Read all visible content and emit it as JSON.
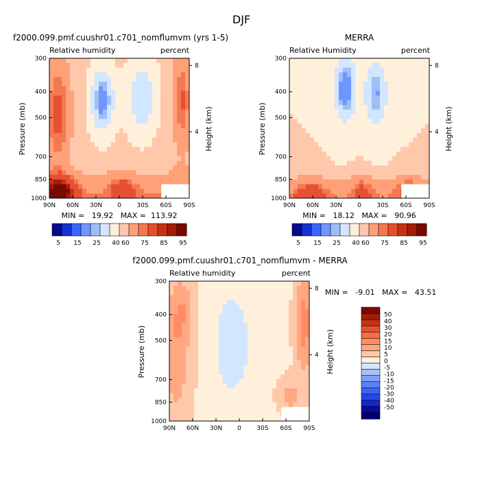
{
  "figure": {
    "title": "DJF"
  },
  "chart_data": [
    {
      "type": "heatmap",
      "id": "model",
      "title": "f2000.099.pmf.cuushr01.c701_nomflumvm (yrs 1-5)",
      "left_label": "Relative humidity",
      "right_label": "percent",
      "ylabel": "Pressure (mb)",
      "y2label": "Height (km)",
      "x_ticks": [
        "90N",
        "60N",
        "30N",
        "0",
        "30S",
        "60S",
        "90S"
      ],
      "y_ticks": [
        "300",
        "400",
        "500",
        "700",
        "850",
        "1000"
      ],
      "y2_ticks": [
        "8",
        "4"
      ],
      "stats": "MIN =   19.92   MAX =  113.92",
      "min": 19.92,
      "max": 113.92,
      "colorbar_labels": [
        "5",
        "15",
        "25",
        "40",
        "60",
        "75",
        "85",
        "95"
      ]
    },
    {
      "type": "heatmap",
      "id": "obs",
      "title": "MERRA",
      "left_label": "Relative Humidity",
      "right_label": "percent",
      "ylabel": "Pressure (mb)",
      "y2label": "Height (km)",
      "x_ticks": [
        "90N",
        "60N",
        "30N",
        "0",
        "30S",
        "60S",
        "90S"
      ],
      "y_ticks": [
        "300",
        "400",
        "500",
        "700",
        "850",
        "1000"
      ],
      "y2_ticks": [
        "8",
        "4"
      ],
      "stats": "MIN =   18.12   MAX =   90.96",
      "min": 18.12,
      "max": 90.96,
      "colorbar_labels": [
        "5",
        "15",
        "25",
        "40",
        "60",
        "75",
        "85",
        "95"
      ]
    },
    {
      "type": "heatmap",
      "id": "diff",
      "title": "f2000.099.pmf.cuushr01.c701_nomflumvm - MERRA",
      "left_label": "Relative humidity",
      "right_label": "percent",
      "ylabel": "Pressure (mb)",
      "y2label": "Height (km)",
      "x_ticks": [
        "90N",
        "60N",
        "30N",
        "0",
        "30S",
        "60S",
        "90S"
      ],
      "y_ticks": [
        "300",
        "400",
        "500",
        "700",
        "850",
        "1000"
      ],
      "y2_ticks": [
        "8",
        "4"
      ],
      "stats": "MIN =   -9.01   MAX =   43.51",
      "min": -9.01,
      "max": 43.51,
      "colorbar_labels": [
        "50",
        "40",
        "30",
        "20",
        "15",
        "10",
        "5",
        "0",
        "-5",
        "-10",
        "-15",
        "-20",
        "-30",
        "-40",
        "-50"
      ]
    }
  ],
  "colors": {
    "abs_scale": [
      "#0a0a8c",
      "#1432d2",
      "#3c64ff",
      "#6e96ff",
      "#a0bef5",
      "#d2e6ff",
      "#fff0dc",
      "#ffc8aa",
      "#ffa078",
      "#f57850",
      "#e65032",
      "#c83214",
      "#a01e0a",
      "#780a00"
    ],
    "diff_scale": [
      "#00006e",
      "#0a0aa0",
      "#1428c8",
      "#2846e6",
      "#3c64f0",
      "#5a82f5",
      "#82a0f5",
      "#a8c0f5",
      "#d2e6ff",
      "#fff0dc",
      "#ffc8aa",
      "#ffa882",
      "#ff8c64",
      "#f56e46",
      "#e65032",
      "#c83214",
      "#a01e0a",
      "#800a00"
    ]
  }
}
